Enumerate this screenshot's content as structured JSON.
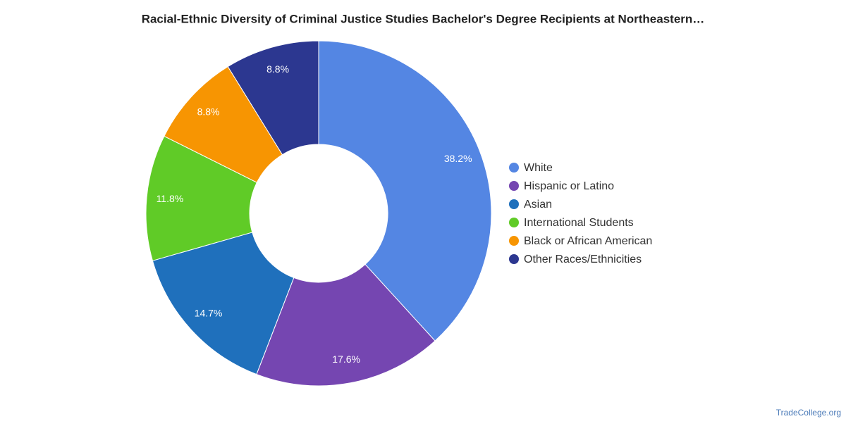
{
  "chart_data": {
    "type": "donut",
    "title": "Racial-Ethnic Diversity of Criminal Justice Studies Bachelor's Degree Recipients at Northeastern…",
    "categories": [
      "White",
      "Hispanic or Latino",
      "Asian",
      "International Students",
      "Black or African American",
      "Other Races/Ethnicities"
    ],
    "values": [
      38.2,
      17.6,
      14.7,
      11.8,
      8.8,
      8.8
    ],
    "value_labels": [
      "38.2%",
      "17.6%",
      "14.7%",
      "11.8%",
      "8.8%",
      "8.8%"
    ],
    "colors": [
      "#5486e3",
      "#7546b1",
      "#1f70bc",
      "#60cb27",
      "#f79502",
      "#2c3790"
    ],
    "legend": "right"
  },
  "source": "TradeCollege.org"
}
